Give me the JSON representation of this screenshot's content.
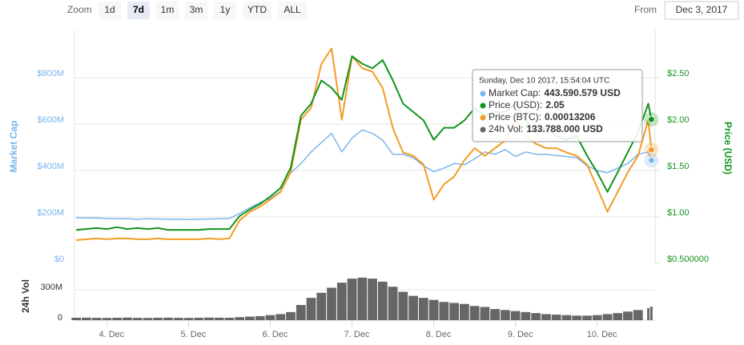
{
  "range_selector": {
    "label": "Zoom",
    "buttons": [
      "1d",
      "7d",
      "1m",
      "3m",
      "1y",
      "YTD",
      "ALL"
    ],
    "selected": 1
  },
  "from": {
    "label": "From",
    "value": "Dec 3, 2017"
  },
  "chart_data": {
    "type": "line",
    "y_label": "Market Cap",
    "y2_label": "Price (USD)",
    "vol_y_label": "24h Vol",
    "x": [
      "2017-12-03T15:00:00Z",
      "2017-12-03T18:00:00Z",
      "2017-12-03T21:00:00Z",
      "2017-12-04T00:00:00Z",
      "2017-12-04T03:00:00Z",
      "2017-12-04T06:00:00Z",
      "2017-12-04T09:00:00Z",
      "2017-12-04T12:00:00Z",
      "2017-12-04T15:00:00Z",
      "2017-12-04T18:00:00Z",
      "2017-12-04T21:00:00Z",
      "2017-12-05T00:00:00Z",
      "2017-12-05T03:00:00Z",
      "2017-12-05T06:00:00Z",
      "2017-12-05T09:00:00Z",
      "2017-12-05T12:00:00Z",
      "2017-12-05T15:00:00Z",
      "2017-12-05T18:00:00Z",
      "2017-12-05T21:00:00Z",
      "2017-12-06T00:00:00Z",
      "2017-12-06T03:00:00Z",
      "2017-12-06T06:00:00Z",
      "2017-12-06T09:00:00Z",
      "2017-12-06T12:00:00Z",
      "2017-12-06T15:00:00Z",
      "2017-12-06T18:00:00Z",
      "2017-12-06T21:00:00Z",
      "2017-12-07T00:00:00Z",
      "2017-12-07T03:00:00Z",
      "2017-12-07T06:00:00Z",
      "2017-12-07T09:00:00Z",
      "2017-12-07T12:00:00Z",
      "2017-12-07T15:00:00Z",
      "2017-12-07T18:00:00Z",
      "2017-12-07T21:00:00Z",
      "2017-12-08T00:00:00Z",
      "2017-12-08T03:00:00Z",
      "2017-12-08T06:00:00Z",
      "2017-12-08T09:00:00Z",
      "2017-12-08T12:00:00Z",
      "2017-12-08T15:00:00Z",
      "2017-12-08T18:00:00Z",
      "2017-12-08T21:00:00Z",
      "2017-12-09T00:00:00Z",
      "2017-12-09T03:00:00Z",
      "2017-12-09T06:00:00Z",
      "2017-12-09T09:00:00Z",
      "2017-12-09T12:00:00Z",
      "2017-12-09T15:00:00Z",
      "2017-12-09T18:00:00Z",
      "2017-12-09T21:00:00Z",
      "2017-12-10T00:00:00Z",
      "2017-12-10T03:00:00Z",
      "2017-12-10T06:00:00Z",
      "2017-12-10T09:00:00Z",
      "2017-12-10T12:00:00Z",
      "2017-12-10T15:00:00Z",
      "2017-12-10T15:54:04Z"
    ],
    "xlim": [
      "2017-12-03T14:30:00Z",
      "2017-12-10T17:00:00Z"
    ],
    "xticks": [
      {
        "value": "2017-12-04T00:00:00Z",
        "label": "4. Dec"
      },
      {
        "value": "2017-12-05T00:00:00Z",
        "label": "5. Dec"
      },
      {
        "value": "2017-12-06T00:00:00Z",
        "label": "6. Dec"
      },
      {
        "value": "2017-12-07T00:00:00Z",
        "label": "7. Dec"
      },
      {
        "value": "2017-12-08T00:00:00Z",
        "label": "8. Dec"
      },
      {
        "value": "2017-12-09T00:00:00Z",
        "label": "9. Dec"
      },
      {
        "value": "2017-12-10T00:00:00Z",
        "label": "10. Dec"
      }
    ],
    "ylim": [
      0,
      1000000000
    ],
    "yticks": [
      {
        "value": 0,
        "label": "$0"
      },
      {
        "value": 200000000,
        "label": "$200M"
      },
      {
        "value": 400000000,
        "label": "$400M"
      },
      {
        "value": 600000000,
        "label": "$600M"
      },
      {
        "value": 800000000,
        "label": "$800M"
      }
    ],
    "y2lim": [
      0.5,
      3.0
    ],
    "y2ticks": [
      {
        "value": 0.5,
        "label": "$0.500000"
      },
      {
        "value": 1,
        "label": "$1.00"
      },
      {
        "value": 1.5,
        "label": "$1.50"
      },
      {
        "value": 2,
        "label": "$2.00"
      },
      {
        "value": 2.5,
        "label": "$2.50"
      }
    ],
    "y3lim": [
      0,
      0.00027
    ],
    "vol_ylim": [
      0,
      450000000
    ],
    "vol_yticks": [
      0,
      {
        "value": 300000000,
        "label": "300M"
      }
    ],
    "grid": true,
    "series": [
      {
        "type": "line",
        "axis": "y",
        "color": "#7cb5ec",
        "values": [
          197000000,
          195000000,
          196000000,
          193000000,
          192000000,
          192000000,
          190000000,
          192000000,
          191000000,
          190000000,
          190000000,
          189000000,
          190000000,
          191000000,
          192000000,
          193000000,
          215000000,
          240000000,
          262000000,
          280000000,
          310000000,
          390000000,
          430000000,
          480000000,
          520000000,
          560000000,
          480000000,
          540000000,
          575000000,
          560000000,
          530000000,
          470000000,
          470000000,
          455000000,
          420000000,
          395000000,
          410000000,
          430000000,
          425000000,
          450000000,
          480000000,
          470000000,
          490000000,
          460000000,
          480000000,
          470000000,
          470000000,
          465000000,
          460000000,
          455000000,
          420000000,
          400000000,
          390000000,
          410000000,
          430000000,
          470000000,
          480000000,
          443590579
        ]
      },
      {
        "type": "line",
        "axis": "y2",
        "color": "#12941d",
        "values": [
          0.86,
          0.87,
          0.88,
          0.87,
          0.89,
          0.87,
          0.88,
          0.87,
          0.88,
          0.86,
          0.86,
          0.86,
          0.86,
          0.87,
          0.87,
          0.87,
          1.01,
          1.08,
          1.14,
          1.22,
          1.31,
          1.53,
          2.09,
          2.22,
          2.47,
          2.39,
          2.26,
          2.73,
          2.65,
          2.6,
          2.69,
          2.47,
          2.22,
          2.13,
          2.04,
          1.83,
          1.96,
          1.96,
          2.04,
          2.17,
          2.09,
          2.13,
          2.13,
          2.22,
          2.04,
          1.91,
          1.96,
          1.87,
          1.83,
          1.87,
          1.66,
          1.48,
          1.27,
          1.48,
          1.7,
          1.91,
          2.22,
          2.05
        ]
      },
      {
        "type": "line",
        "axis": "y3",
        "color": "#f39c25",
        "values": [
          2.7e-05,
          2.8e-05,
          2.9e-05,
          2.8e-05,
          2.9e-05,
          2.9e-05,
          2.8e-05,
          2.8e-05,
          2.9e-05,
          2.8e-05,
          2.8e-05,
          2.8e-05,
          2.8e-05,
          2.9e-05,
          2.8e-05,
          2.9e-05,
          5e-05,
          6e-05,
          6.6e-05,
          7.4e-05,
          8.3e-05,
          0.000106,
          0.000167,
          0.000181,
          0.000232,
          0.00025,
          0.000167,
          0.000241,
          0.000227,
          0.000223,
          0.000204,
          0.000157,
          0.000129,
          0.000125,
          0.000115,
          7.4e-05,
          9.2e-05,
          0.000101,
          0.00012,
          0.000134,
          0.000125,
          0.000134,
          0.000143,
          0.000167,
          0.000148,
          0.000139,
          0.000134,
          0.000134,
          0.000129,
          0.000125,
          0.000115,
          8.8e-05,
          6e-05,
          8.3e-05,
          0.000106,
          0.000125,
          0.000167,
          0.00013206
        ]
      },
      {
        "type": "column",
        "axis": "vol",
        "color": "#666666",
        "values": [
          24000000,
          25000000,
          23000000,
          22000000,
          24000000,
          26000000,
          23000000,
          22000000,
          24000000,
          25000000,
          23000000,
          22000000,
          24000000,
          26000000,
          25000000,
          24000000,
          30000000,
          35000000,
          40000000,
          50000000,
          60000000,
          80000000,
          150000000,
          220000000,
          270000000,
          320000000,
          370000000,
          410000000,
          420000000,
          410000000,
          380000000,
          330000000,
          280000000,
          240000000,
          220000000,
          200000000,
          180000000,
          170000000,
          160000000,
          140000000,
          130000000,
          110000000,
          100000000,
          90000000,
          80000000,
          70000000,
          60000000,
          55000000,
          50000000,
          45000000,
          45000000,
          50000000,
          60000000,
          70000000,
          85000000,
          100000000,
          120000000,
          133788000
        ]
      }
    ],
    "tooltip": {
      "header": "Sunday, Dec 10 2017, 15:54:04 UTC",
      "rows": [
        {
          "label": "Market Cap:",
          "value": "443.590.579 USD"
        },
        {
          "label": "Price (USD):",
          "value": "2.05"
        },
        {
          "label": "Price (BTC):",
          "value": "0.00013206"
        },
        {
          "label": "24h Vol:",
          "value": "133.788.000 USD"
        }
      ]
    }
  }
}
